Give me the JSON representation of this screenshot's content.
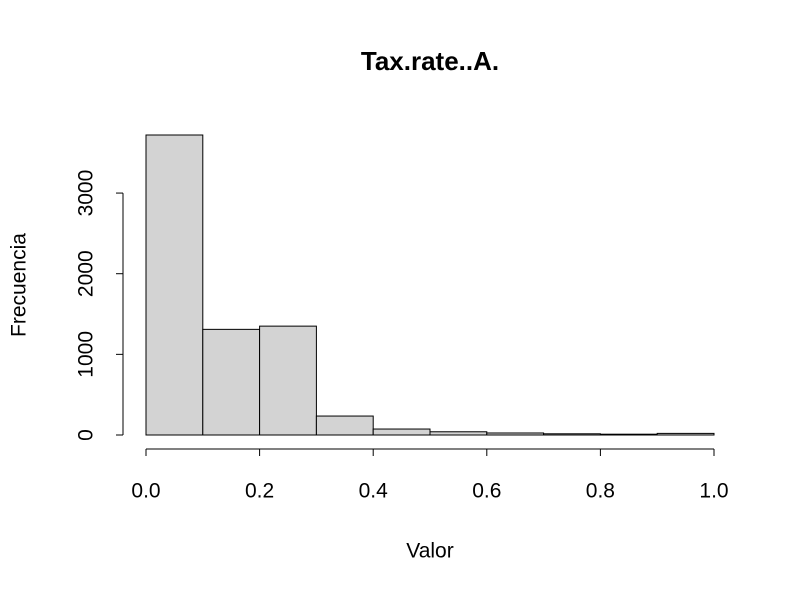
{
  "chart_data": {
    "type": "histogram",
    "title": "Tax.rate..A.",
    "x_label": "Valor",
    "y_label": "Frecuencia",
    "bins": [
      0,
      0.1,
      0.2,
      0.3,
      0.4,
      0.5,
      0.6,
      0.7,
      0.8,
      0.9,
      1.0
    ],
    "values": [
      3720,
      1310,
      1350,
      235,
      74,
      40,
      25,
      15,
      10,
      20
    ],
    "color": "#d3d3d3",
    "xlim": [
      0,
      1
    ],
    "xticks": [
      {
        "value": 0,
        "label": "0.0"
      },
      0.2,
      0.4,
      0.6,
      0.8,
      {
        "value": 1,
        "label": "1.0"
      }
    ],
    "ylim": [
      0,
      3720
    ],
    "yticks": [
      0,
      1000,
      2000,
      3000
    ]
  }
}
